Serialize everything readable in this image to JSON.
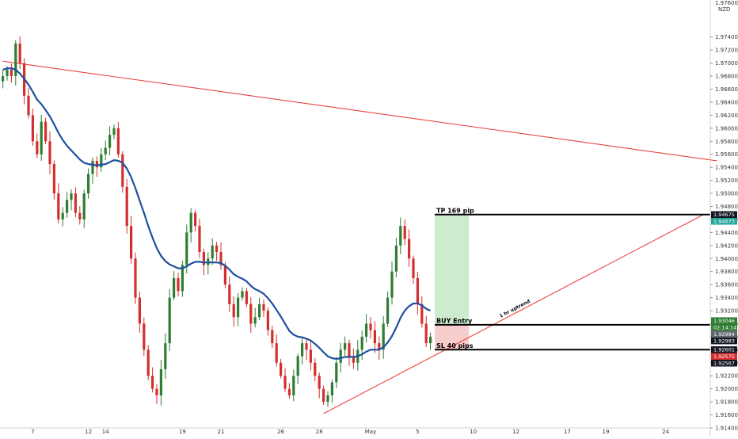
{
  "chart_data": {
    "type": "candlestick",
    "title": "",
    "currency_label": "NZD",
    "y_axis": {
      "min": 1.914,
      "max": 1.9792,
      "ticks": [
        "1.97400",
        "1.97200",
        "1.97000",
        "1.96800",
        "1.96600",
        "1.96400",
        "1.96200",
        "1.96000",
        "1.95800",
        "1.95600",
        "1.95400",
        "1.95200",
        "1.95000",
        "1.94800",
        "1.94600",
        "1.94400",
        "1.94200",
        "1.94000",
        "1.93800",
        "1.93600",
        "1.93400",
        "1.93200",
        "1.93000",
        "1.92800",
        "1.92600",
        "1.92400",
        "1.92200",
        "1.92000",
        "1.91800",
        "1.91600",
        "1.91400"
      ],
      "top_label": "1.97600"
    },
    "x_axis": {
      "labels": [
        {
          "text": "7",
          "i": 7
        },
        {
          "text": "12",
          "i": 20
        },
        {
          "text": "14",
          "i": 24
        },
        {
          "text": "19",
          "i": 42
        },
        {
          "text": "21",
          "i": 51
        },
        {
          "text": "26",
          "i": 65
        },
        {
          "text": "28",
          "i": 74
        },
        {
          "text": "May",
          "i": 86
        },
        {
          "text": "5",
          "i": 97
        },
        {
          "text": "10",
          "i": 110
        },
        {
          "text": "12",
          "i": 120
        },
        {
          "text": "17",
          "i": 132
        },
        {
          "text": "19",
          "i": 141
        },
        {
          "text": "24",
          "i": 155
        }
      ]
    },
    "closes": [
      1.968,
      1.969,
      1.968,
      1.973,
      1.97,
      1.965,
      1.962,
      1.958,
      1.956,
      1.961,
      1.958,
      1.9545,
      1.95,
      1.946,
      1.947,
      1.949,
      1.95,
      1.947,
      1.946,
      1.95,
      1.953,
      1.955,
      1.954,
      1.956,
      1.957,
      1.959,
      1.96,
      1.956,
      1.951,
      1.945,
      1.94,
      1.934,
      1.93,
      1.926,
      1.922,
      1.92,
      1.919,
      1.923,
      1.927,
      1.934,
      1.937,
      1.935,
      1.939,
      1.944,
      1.947,
      1.945,
      1.941,
      1.939,
      1.94,
      1.942,
      1.941,
      1.939,
      1.936,
      1.933,
      1.931,
      1.934,
      1.935,
      1.933,
      1.93,
      1.931,
      1.933,
      1.932,
      1.929,
      1.927,
      1.924,
      1.922,
      1.92,
      1.919,
      1.922,
      1.925,
      1.927,
      1.926,
      1.924,
      1.922,
      1.92,
      1.918,
      1.919,
      1.921,
      1.924,
      1.926,
      1.927,
      1.925,
      1.924,
      1.926,
      1.928,
      1.93,
      1.929,
      1.927,
      1.926,
      1.93,
      1.934,
      1.938,
      1.942,
      1.945,
      1.943,
      1.94,
      1.937,
      1.933,
      1.93,
      1.927,
      1.928
    ],
    "moving_average": [
      1.969,
      1.9692,
      1.9692,
      1.969,
      1.9684,
      1.9676,
      1.9667,
      1.9656,
      1.9644,
      1.9637,
      1.9628,
      1.9618,
      1.9606,
      1.9593,
      1.9582,
      1.9573,
      1.9566,
      1.9559,
      1.9552,
      1.9547,
      1.9545,
      1.9544,
      1.9543,
      1.9544,
      1.9545,
      1.9548,
      1.9551,
      1.955,
      1.9547,
      1.9538,
      1.9525,
      1.9508,
      1.9489,
      1.947,
      1.945,
      1.9432,
      1.9416,
      1.9404,
      1.9396,
      1.9391,
      1.9388,
      1.9385,
      1.9385,
      1.9388,
      1.9392,
      1.9395,
      1.9395,
      1.9394,
      1.9394,
      1.9394,
      1.9394,
      1.9393,
      1.9389,
      1.9383,
      1.9376,
      1.9372,
      1.9369,
      1.9365,
      1.9358,
      1.9353,
      1.935,
      1.9346,
      1.9339,
      1.9331,
      1.9321,
      1.9311,
      1.93,
      1.9289,
      1.9283,
      1.928,
      1.9279,
      1.9277,
      1.9274,
      1.9269,
      1.9263,
      1.9256,
      1.925,
      1.9247,
      1.9246,
      1.9247,
      1.9249,
      1.9249,
      1.9249,
      1.925,
      1.9253,
      1.9257,
      1.926,
      1.926,
      1.926,
      1.9264,
      1.9271,
      1.9281,
      1.9294,
      1.9309,
      1.932,
      1.9327,
      1.9331,
      1.9331,
      1.9328,
      1.9323,
      1.932
    ],
    "trendlines": [
      {
        "name": "resistance",
        "i1": 0,
        "y1": 1.9703,
        "i2": 167,
        "y2": 1.955,
        "color": "#e8433f"
      },
      {
        "name": "1 hr uptrend",
        "i1": 75,
        "y1": 1.9162,
        "i2": 164,
        "y2": 1.9468,
        "color": "#e8433f"
      }
    ],
    "position": {
      "entry": 1.92983,
      "take_profit": 1.94675,
      "stop_loss": 1.92601,
      "start_i": 101,
      "end_i": 109,
      "labels": {
        "tp": "TP 169 pip",
        "entry": "BUY Entry",
        "sl": "SL 40 pips",
        "trend": "1 hr uptrend"
      }
    },
    "price_badges": [
      {
        "text": "1.94675",
        "value": 1.94675,
        "color": "#131722"
      },
      {
        "text": "1.94673",
        "value": 1.94673,
        "color": "#26a69a"
      },
      {
        "text": "1.93046",
        "value": 1.93046,
        "color": "#2e7d32"
      },
      {
        "text": "02:14:14",
        "value": 1.92995,
        "color": "#2e7d32"
      },
      {
        "text": "1.92984",
        "value": 1.92984,
        "color": "#5d6670"
      },
      {
        "text": "1.92983",
        "value": 1.92983,
        "color": "#131722"
      },
      {
        "text": "1.92601",
        "value": 1.92601,
        "color": "#131722"
      },
      {
        "text": "1.92575",
        "value": 1.92575,
        "color": "#d32f2f"
      },
      {
        "text": "1.92567",
        "value": 1.92567,
        "color": "#131722"
      }
    ],
    "colors": {
      "up": "#2e7d32",
      "down": "#d32f2f",
      "ma": "#1e4fa0",
      "target_zone": "#cdeccd",
      "stop_zone": "#f8cdcd",
      "level_line": "#000000"
    },
    "grid": false,
    "legend": "none"
  }
}
